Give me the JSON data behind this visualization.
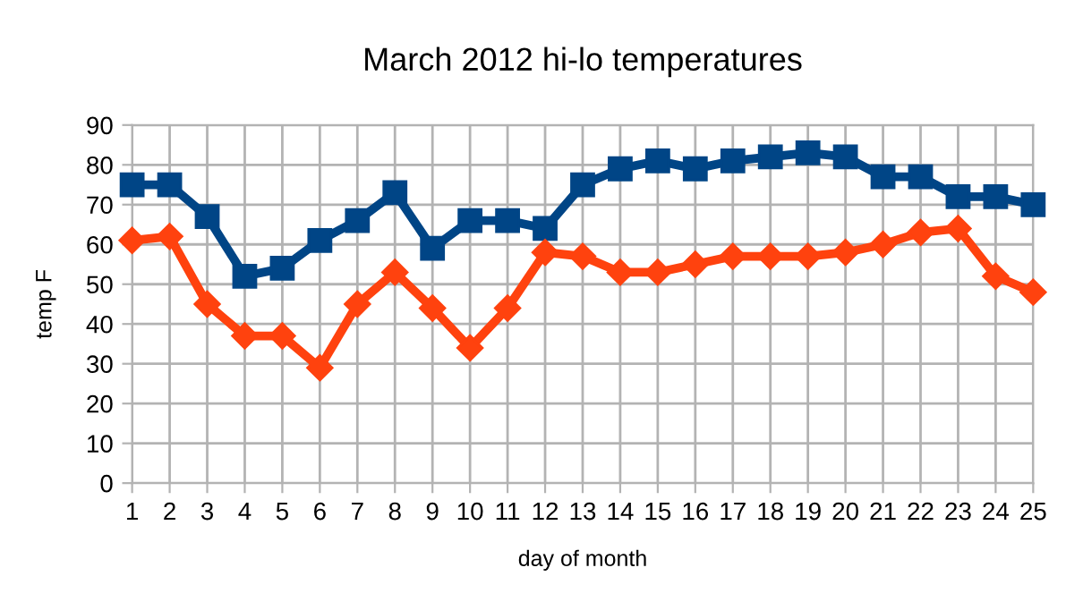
{
  "chart_data": {
    "type": "line",
    "title": "March 2012 hi-lo temperatures",
    "xlabel": "day of month",
    "ylabel": "temp F",
    "x": [
      1,
      2,
      3,
      4,
      5,
      6,
      7,
      8,
      9,
      10,
      11,
      12,
      13,
      14,
      15,
      16,
      17,
      18,
      19,
      20,
      21,
      22,
      23,
      24,
      25
    ],
    "series": [
      {
        "color": "#004586",
        "marker": "square",
        "values": [
          75,
          75,
          67,
          52,
          54,
          61,
          66,
          73,
          59,
          66,
          66,
          64,
          75,
          79,
          81,
          79,
          81,
          82,
          83,
          82,
          77,
          77,
          72,
          72,
          70
        ]
      },
      {
        "color": "#ff420e",
        "marker": "diamond",
        "values": [
          61,
          62,
          45,
          37,
          37,
          29,
          45,
          53,
          44,
          34,
          44,
          58,
          57,
          53,
          53,
          55,
          57,
          57,
          57,
          58,
          60,
          63,
          64,
          52,
          48
        ]
      }
    ],
    "xlim": [
      1,
      25
    ],
    "xticks": [
      1,
      2,
      3,
      4,
      5,
      6,
      7,
      8,
      9,
      10,
      11,
      12,
      13,
      14,
      15,
      16,
      17,
      18,
      19,
      20,
      21,
      22,
      23,
      24,
      25
    ],
    "ylim": [
      0,
      90
    ],
    "yticks": [
      0,
      10,
      20,
      30,
      40,
      50,
      60,
      70,
      80,
      90
    ],
    "grid": true,
    "line_style": "solid"
  }
}
